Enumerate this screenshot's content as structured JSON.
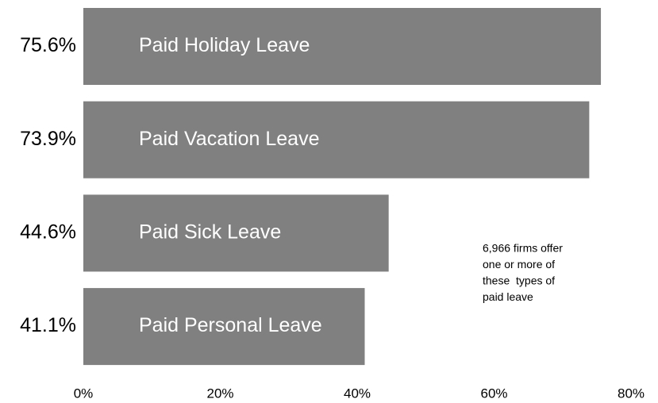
{
  "chart_data": {
    "type": "barh",
    "categories": [
      "Paid Holiday Leave",
      "Paid Vacation Leave",
      "Paid Sick Leave",
      "Paid Personal Leave"
    ],
    "values": [
      75.6,
      73.9,
      44.6,
      41.1
    ],
    "value_labels": [
      "75.6%",
      "73.9%",
      "44.6%",
      "41.1%"
    ],
    "color": "#808080",
    "xlim": [
      0,
      80
    ],
    "xticks": [
      {
        "value": 0,
        "label": "0%"
      },
      {
        "value": 20,
        "label": "20%"
      },
      {
        "value": 40,
        "label": "40%"
      },
      {
        "value": 60,
        "label": "60%"
      },
      {
        "value": 80,
        "label": "80%"
      }
    ],
    "annotation": [
      "6,966 firms offer",
      "one or more of",
      "these  types of",
      "paid leave"
    ]
  }
}
